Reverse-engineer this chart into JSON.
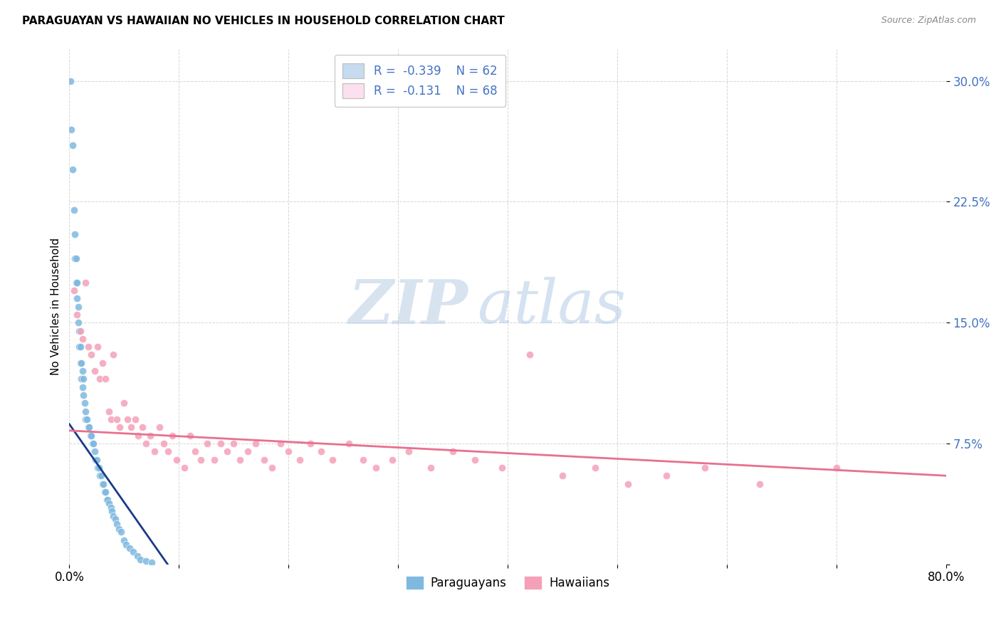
{
  "title": "PARAGUAYAN VS HAWAIIAN NO VEHICLES IN HOUSEHOLD CORRELATION CHART",
  "source": "Source: ZipAtlas.com",
  "ylabel": "No Vehicles in Household",
  "xlim": [
    0.0,
    0.8
  ],
  "ylim": [
    0.0,
    0.32
  ],
  "yticks": [
    0.0,
    0.075,
    0.15,
    0.225,
    0.3
  ],
  "ytick_labels": [
    "",
    "7.5%",
    "15.0%",
    "22.5%",
    "30.0%"
  ],
  "xticks": [
    0.0,
    0.1,
    0.2,
    0.3,
    0.4,
    0.5,
    0.6,
    0.7,
    0.8
  ],
  "blue_color": "#7fb9e0",
  "blue_fill": "#c6dbef",
  "pink_color": "#f4a0b8",
  "pink_fill": "#fde0ef",
  "line_blue": "#1a3a8a",
  "line_pink": "#e87090",
  "watermark_zip": "ZIP",
  "watermark_atlas": "atlas",
  "paraguayan_x": [
    0.001,
    0.002,
    0.003,
    0.003,
    0.004,
    0.005,
    0.005,
    0.006,
    0.006,
    0.007,
    0.007,
    0.008,
    0.008,
    0.009,
    0.009,
    0.01,
    0.01,
    0.011,
    0.011,
    0.012,
    0.012,
    0.013,
    0.013,
    0.014,
    0.015,
    0.015,
    0.016,
    0.017,
    0.018,
    0.019,
    0.02,
    0.021,
    0.022,
    0.023,
    0.024,
    0.025,
    0.026,
    0.027,
    0.028,
    0.029,
    0.03,
    0.031,
    0.032,
    0.033,
    0.034,
    0.035,
    0.036,
    0.038,
    0.039,
    0.04,
    0.042,
    0.043,
    0.045,
    0.047,
    0.05,
    0.052,
    0.055,
    0.058,
    0.062,
    0.065,
    0.07,
    0.075
  ],
  "paraguayan_y": [
    0.3,
    0.27,
    0.26,
    0.245,
    0.22,
    0.205,
    0.19,
    0.19,
    0.175,
    0.175,
    0.165,
    0.16,
    0.15,
    0.145,
    0.135,
    0.135,
    0.125,
    0.125,
    0.115,
    0.12,
    0.11,
    0.115,
    0.105,
    0.1,
    0.095,
    0.09,
    0.09,
    0.085,
    0.085,
    0.08,
    0.08,
    0.075,
    0.075,
    0.07,
    0.065,
    0.065,
    0.06,
    0.06,
    0.055,
    0.055,
    0.05,
    0.05,
    0.045,
    0.045,
    0.04,
    0.04,
    0.038,
    0.035,
    0.033,
    0.03,
    0.028,
    0.025,
    0.022,
    0.02,
    0.015,
    0.012,
    0.01,
    0.008,
    0.005,
    0.003,
    0.002,
    0.001
  ],
  "hawaiian_x": [
    0.004,
    0.007,
    0.01,
    0.012,
    0.015,
    0.017,
    0.02,
    0.023,
    0.026,
    0.028,
    0.03,
    0.033,
    0.036,
    0.038,
    0.04,
    0.043,
    0.046,
    0.05,
    0.053,
    0.056,
    0.06,
    0.063,
    0.067,
    0.07,
    0.074,
    0.078,
    0.082,
    0.086,
    0.09,
    0.094,
    0.098,
    0.105,
    0.11,
    0.115,
    0.12,
    0.126,
    0.132,
    0.138,
    0.144,
    0.15,
    0.156,
    0.163,
    0.17,
    0.178,
    0.185,
    0.193,
    0.2,
    0.21,
    0.22,
    0.23,
    0.24,
    0.255,
    0.268,
    0.28,
    0.295,
    0.31,
    0.33,
    0.35,
    0.37,
    0.395,
    0.42,
    0.45,
    0.48,
    0.51,
    0.545,
    0.58,
    0.63,
    0.7
  ],
  "hawaiian_y": [
    0.17,
    0.155,
    0.145,
    0.14,
    0.175,
    0.135,
    0.13,
    0.12,
    0.135,
    0.115,
    0.125,
    0.115,
    0.095,
    0.09,
    0.13,
    0.09,
    0.085,
    0.1,
    0.09,
    0.085,
    0.09,
    0.08,
    0.085,
    0.075,
    0.08,
    0.07,
    0.085,
    0.075,
    0.07,
    0.08,
    0.065,
    0.06,
    0.08,
    0.07,
    0.065,
    0.075,
    0.065,
    0.075,
    0.07,
    0.075,
    0.065,
    0.07,
    0.075,
    0.065,
    0.06,
    0.075,
    0.07,
    0.065,
    0.075,
    0.07,
    0.065,
    0.075,
    0.065,
    0.06,
    0.065,
    0.07,
    0.06,
    0.07,
    0.065,
    0.06,
    0.13,
    0.055,
    0.06,
    0.05,
    0.055,
    0.06,
    0.05,
    0.06
  ],
  "blue_line_x": [
    0.0,
    0.1
  ],
  "blue_line_y": [
    0.087,
    -0.01
  ],
  "pink_line_x": [
    0.0,
    0.8
  ],
  "pink_line_y": [
    0.083,
    0.055
  ]
}
